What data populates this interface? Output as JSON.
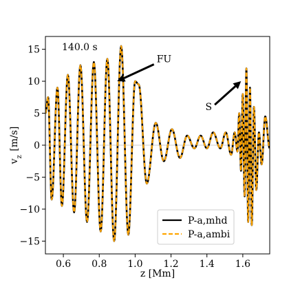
{
  "chart_data": {
    "type": "line",
    "xlabel": "z [Mm]",
    "ylabel": "v_z [m/s]",
    "xlim": [
      0.5,
      1.75
    ],
    "ylim": [
      -17,
      17
    ],
    "xticks": [
      0.6,
      0.8,
      1.0,
      1.2,
      1.4,
      1.6
    ],
    "xtick_labels": [
      "0.6",
      "0.8",
      "1.0",
      "1.2",
      "1.4",
      "1.6"
    ],
    "yticks": [
      -15,
      -10,
      -5,
      0,
      5,
      10,
      15
    ],
    "ytick_labels": [
      "−15",
      "−10",
      "−5",
      "0",
      "5",
      "10",
      "15"
    ],
    "zero_line": true,
    "grid": false,
    "legend_position": "lower-right",
    "annotations": [
      {
        "text": "140.0 s"
      },
      {
        "text": "FU",
        "arrow_tip": [
          0.9,
          10
        ],
        "text_at": [
          1.12,
          13.5
        ]
      },
      {
        "text": "S",
        "arrow_tip": [
          1.59,
          10
        ],
        "text_at": [
          1.39,
          6
        ]
      }
    ],
    "extrema": [
      [
        0.5,
        5
      ],
      [
        0.515,
        7.5
      ],
      [
        0.535,
        -8.5
      ],
      [
        0.567,
        9
      ],
      [
        0.592,
        -9.5
      ],
      [
        0.625,
        11
      ],
      [
        0.66,
        -10.5
      ],
      [
        0.695,
        12.5
      ],
      [
        0.732,
        -12
      ],
      [
        0.77,
        13
      ],
      [
        0.808,
        -13.5
      ],
      [
        0.845,
        13.5
      ],
      [
        0.883,
        -15
      ],
      [
        0.922,
        15.5
      ],
      [
        0.962,
        -14
      ],
      [
        1.0,
        10
      ],
      [
        1.02,
        9.5
      ],
      [
        1.065,
        -6
      ],
      [
        1.115,
        3.5
      ],
      [
        1.16,
        -2.5
      ],
      [
        1.205,
        2.5
      ],
      [
        1.25,
        -2
      ],
      [
        1.29,
        1.5
      ],
      [
        1.33,
        -0.5
      ],
      [
        1.365,
        1.5
      ],
      [
        1.4,
        -0.5
      ],
      [
        1.435,
        2
      ],
      [
        1.475,
        -0.5
      ],
      [
        1.505,
        2
      ],
      [
        1.535,
        -1.5
      ],
      [
        1.555,
        2
      ],
      [
        1.57,
        -1
      ],
      [
        1.58,
        5
      ],
      [
        1.59,
        -4
      ],
      [
        1.6,
        8
      ],
      [
        1.61,
        -8
      ],
      [
        1.62,
        12
      ],
      [
        1.63,
        -12
      ],
      [
        1.64,
        9
      ],
      [
        1.65,
        -12.5
      ],
      [
        1.662,
        6
      ],
      [
        1.675,
        -7
      ],
      [
        1.69,
        2
      ],
      [
        1.705,
        -3
      ],
      [
        1.725,
        4.5
      ],
      [
        1.75,
        -0.5
      ]
    ],
    "series": [
      {
        "name": "P-a,mhd",
        "color": "#000000",
        "style": "solid"
      },
      {
        "name": "P-a,ambi",
        "color": "#FFA500",
        "style": "dashed"
      }
    ]
  }
}
